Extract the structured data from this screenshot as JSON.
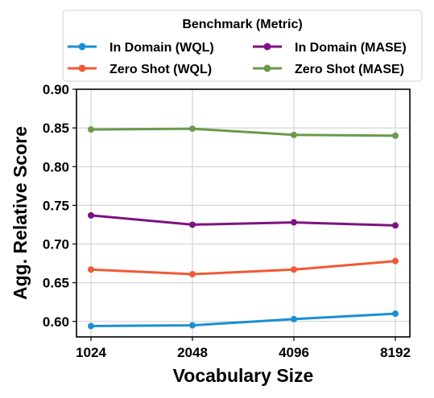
{
  "chart_data": {
    "type": "line",
    "xlabel": "Vocabulary Size",
    "ylabel": "Agg. Relative Score",
    "x": [
      1024,
      2048,
      4096,
      8192
    ],
    "x_tick_labels": [
      "1024",
      "2048",
      "4096",
      "8192"
    ],
    "x_scale": "log2",
    "ylim": [
      0.58,
      0.9
    ],
    "y_ticks": [
      "0.60",
      "0.65",
      "0.70",
      "0.75",
      "0.80",
      "0.85",
      "0.90"
    ],
    "grid": true,
    "legend": {
      "title": "Benchmark (Metric)",
      "placement": "above-plot",
      "columns": 2
    },
    "series": [
      {
        "name": "In Domain (WQL)",
        "color": "#1a8fd1",
        "values": [
          0.594,
          0.595,
          0.603,
          0.61
        ]
      },
      {
        "name": "Zero Shot (WQL)",
        "color": "#f05a35",
        "values": [
          0.667,
          0.661,
          0.667,
          0.678
        ]
      },
      {
        "name": "In Domain (MASE)",
        "color": "#7d1280",
        "values": [
          0.737,
          0.725,
          0.728,
          0.724
        ]
      },
      {
        "name": "Zero Shot (MASE)",
        "color": "#6a9a4a",
        "values": [
          0.848,
          0.849,
          0.841,
          0.84
        ]
      }
    ]
  }
}
